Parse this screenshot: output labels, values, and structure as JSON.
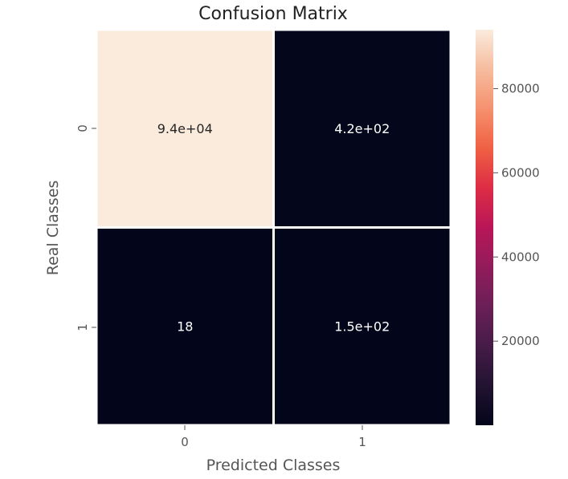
{
  "chart_data": {
    "type": "heatmap",
    "title": "Confusion Matrix",
    "xlabel": "Predicted Classes",
    "ylabel": "Real Classes",
    "x_categories": [
      "0",
      "1"
    ],
    "y_categories": [
      "0",
      "1"
    ],
    "values": [
      [
        94000,
        420
      ],
      [
        18,
        150
      ]
    ],
    "annotations": [
      [
        "9.4e+04",
        "4.2e+02"
      ],
      [
        "18",
        "1.5e+02"
      ]
    ],
    "colorbar": {
      "ticks": [
        20000,
        40000,
        60000,
        80000
      ],
      "tick_labels": [
        "20000",
        "40000",
        "60000",
        "80000"
      ],
      "range": [
        18,
        94000
      ],
      "colormap": "rocket",
      "low_color": "#03051a",
      "high_color": "#faebdd"
    }
  }
}
